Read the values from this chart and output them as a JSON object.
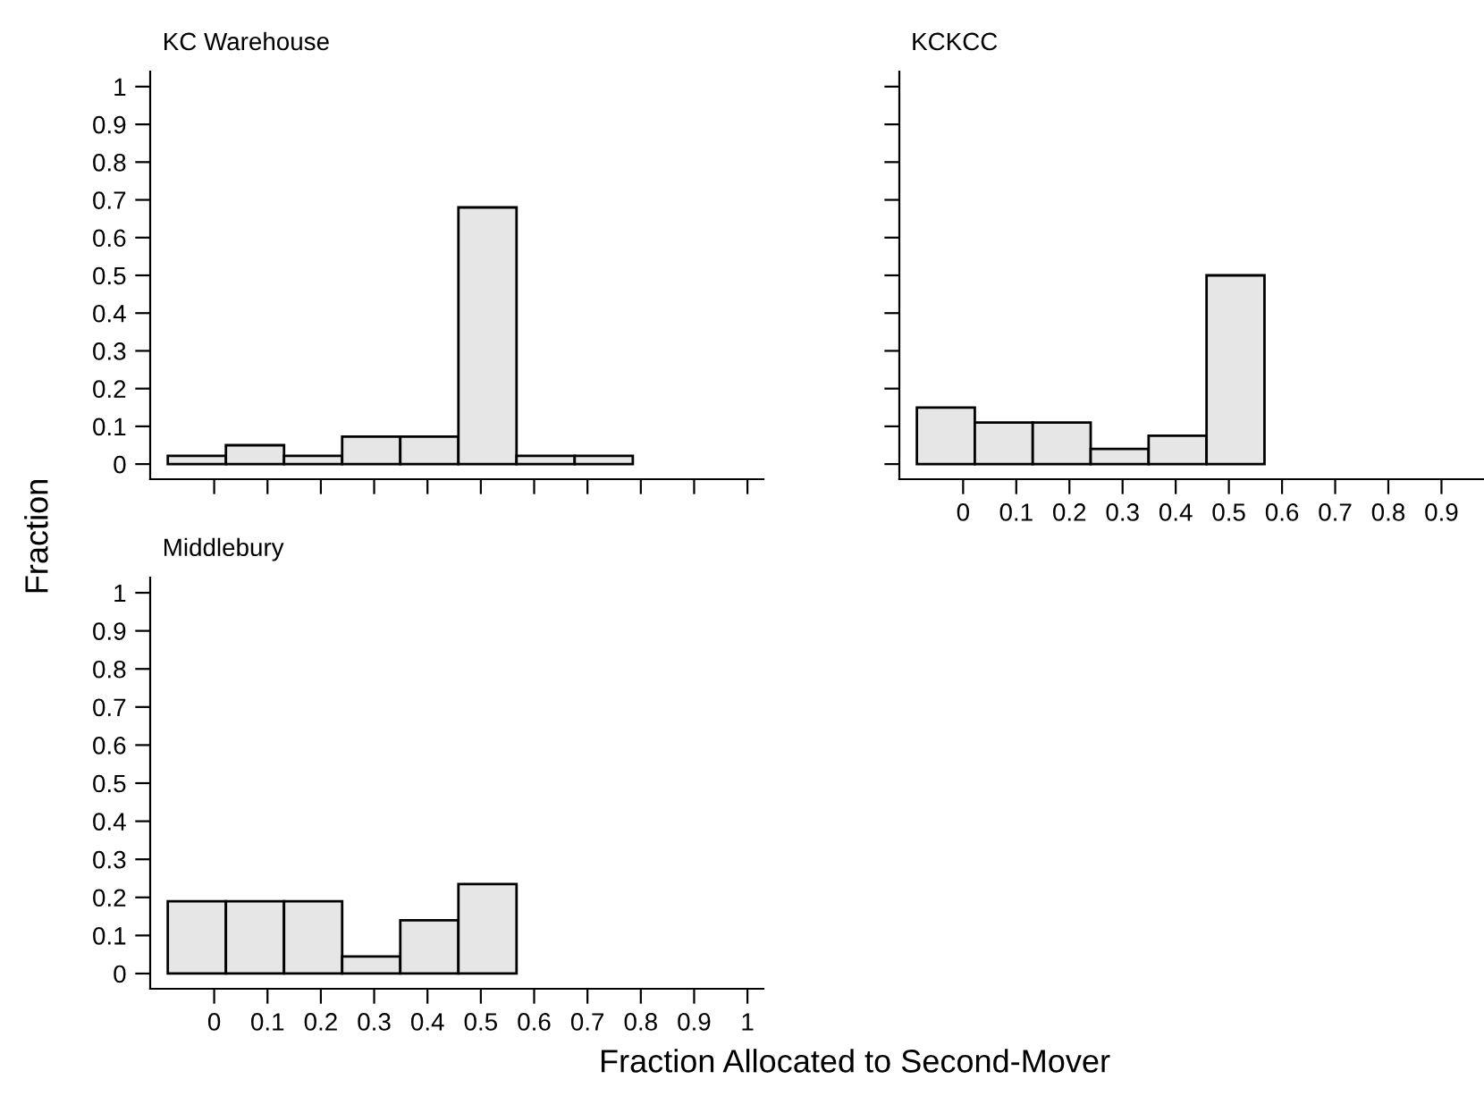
{
  "chart_data": [
    {
      "type": "histogram",
      "title": "KC Warehouse",
      "ylabel": "Fraction",
      "bins": [
        -0.087,
        0.022,
        0.131,
        0.24,
        0.349,
        0.458,
        0.567,
        0.676,
        0.785
      ],
      "values": [
        0.022,
        0.05,
        0.022,
        0.073,
        0.073,
        0.68,
        0.022,
        0.022
      ],
      "color": "#e6e6e6",
      "xlim": [
        -0.12,
        1.03
      ],
      "ylim": [
        -0.04,
        1.04
      ],
      "xticks": [
        0,
        0.1,
        0.2,
        0.3,
        0.4,
        0.5,
        0.6,
        0.7,
        0.8,
        0.9,
        1
      ],
      "yticks": [
        0,
        0.1,
        0.2,
        0.3,
        0.4,
        0.5,
        0.6,
        0.7,
        0.8,
        0.9,
        1
      ],
      "tick_labels": "y",
      "grid": false
    },
    {
      "type": "histogram",
      "title": "KCKCC",
      "bins": [
        -0.087,
        0.022,
        0.131,
        0.24,
        0.349,
        0.458,
        0.567
      ],
      "values": [
        0.15,
        0.11,
        0.11,
        0.04,
        0.075,
        0.5
      ],
      "color": "#e6e6e6",
      "xlim": [
        -0.12,
        0.98
      ],
      "ylim": [
        -0.04,
        1.04
      ],
      "xticks": [
        0,
        0.1,
        0.2,
        0.3,
        0.4,
        0.5,
        0.6,
        0.7,
        0.8,
        0.9
      ],
      "yticks": [
        0,
        0.1,
        0.2,
        0.3,
        0.4,
        0.5,
        0.6,
        0.7,
        0.8,
        0.9,
        1
      ],
      "tick_labels": "x",
      "grid": false
    },
    {
      "type": "histogram",
      "title": "Middlebury",
      "xlabel": "Fraction Allocated to Second-Mover",
      "bins": [
        -0.087,
        0.022,
        0.131,
        0.24,
        0.349,
        0.458,
        0.567
      ],
      "values": [
        0.19,
        0.19,
        0.19,
        0.045,
        0.14,
        0.235
      ],
      "color": "#e6e6e6",
      "xlim": [
        -0.12,
        1.03
      ],
      "ylim": [
        -0.04,
        1.04
      ],
      "xticks": [
        0,
        0.1,
        0.2,
        0.3,
        0.4,
        0.5,
        0.6,
        0.7,
        0.8,
        0.9,
        1
      ],
      "yticks": [
        0,
        0.1,
        0.2,
        0.3,
        0.4,
        0.5,
        0.6,
        0.7,
        0.8,
        0.9,
        1
      ],
      "grid": false
    }
  ]
}
